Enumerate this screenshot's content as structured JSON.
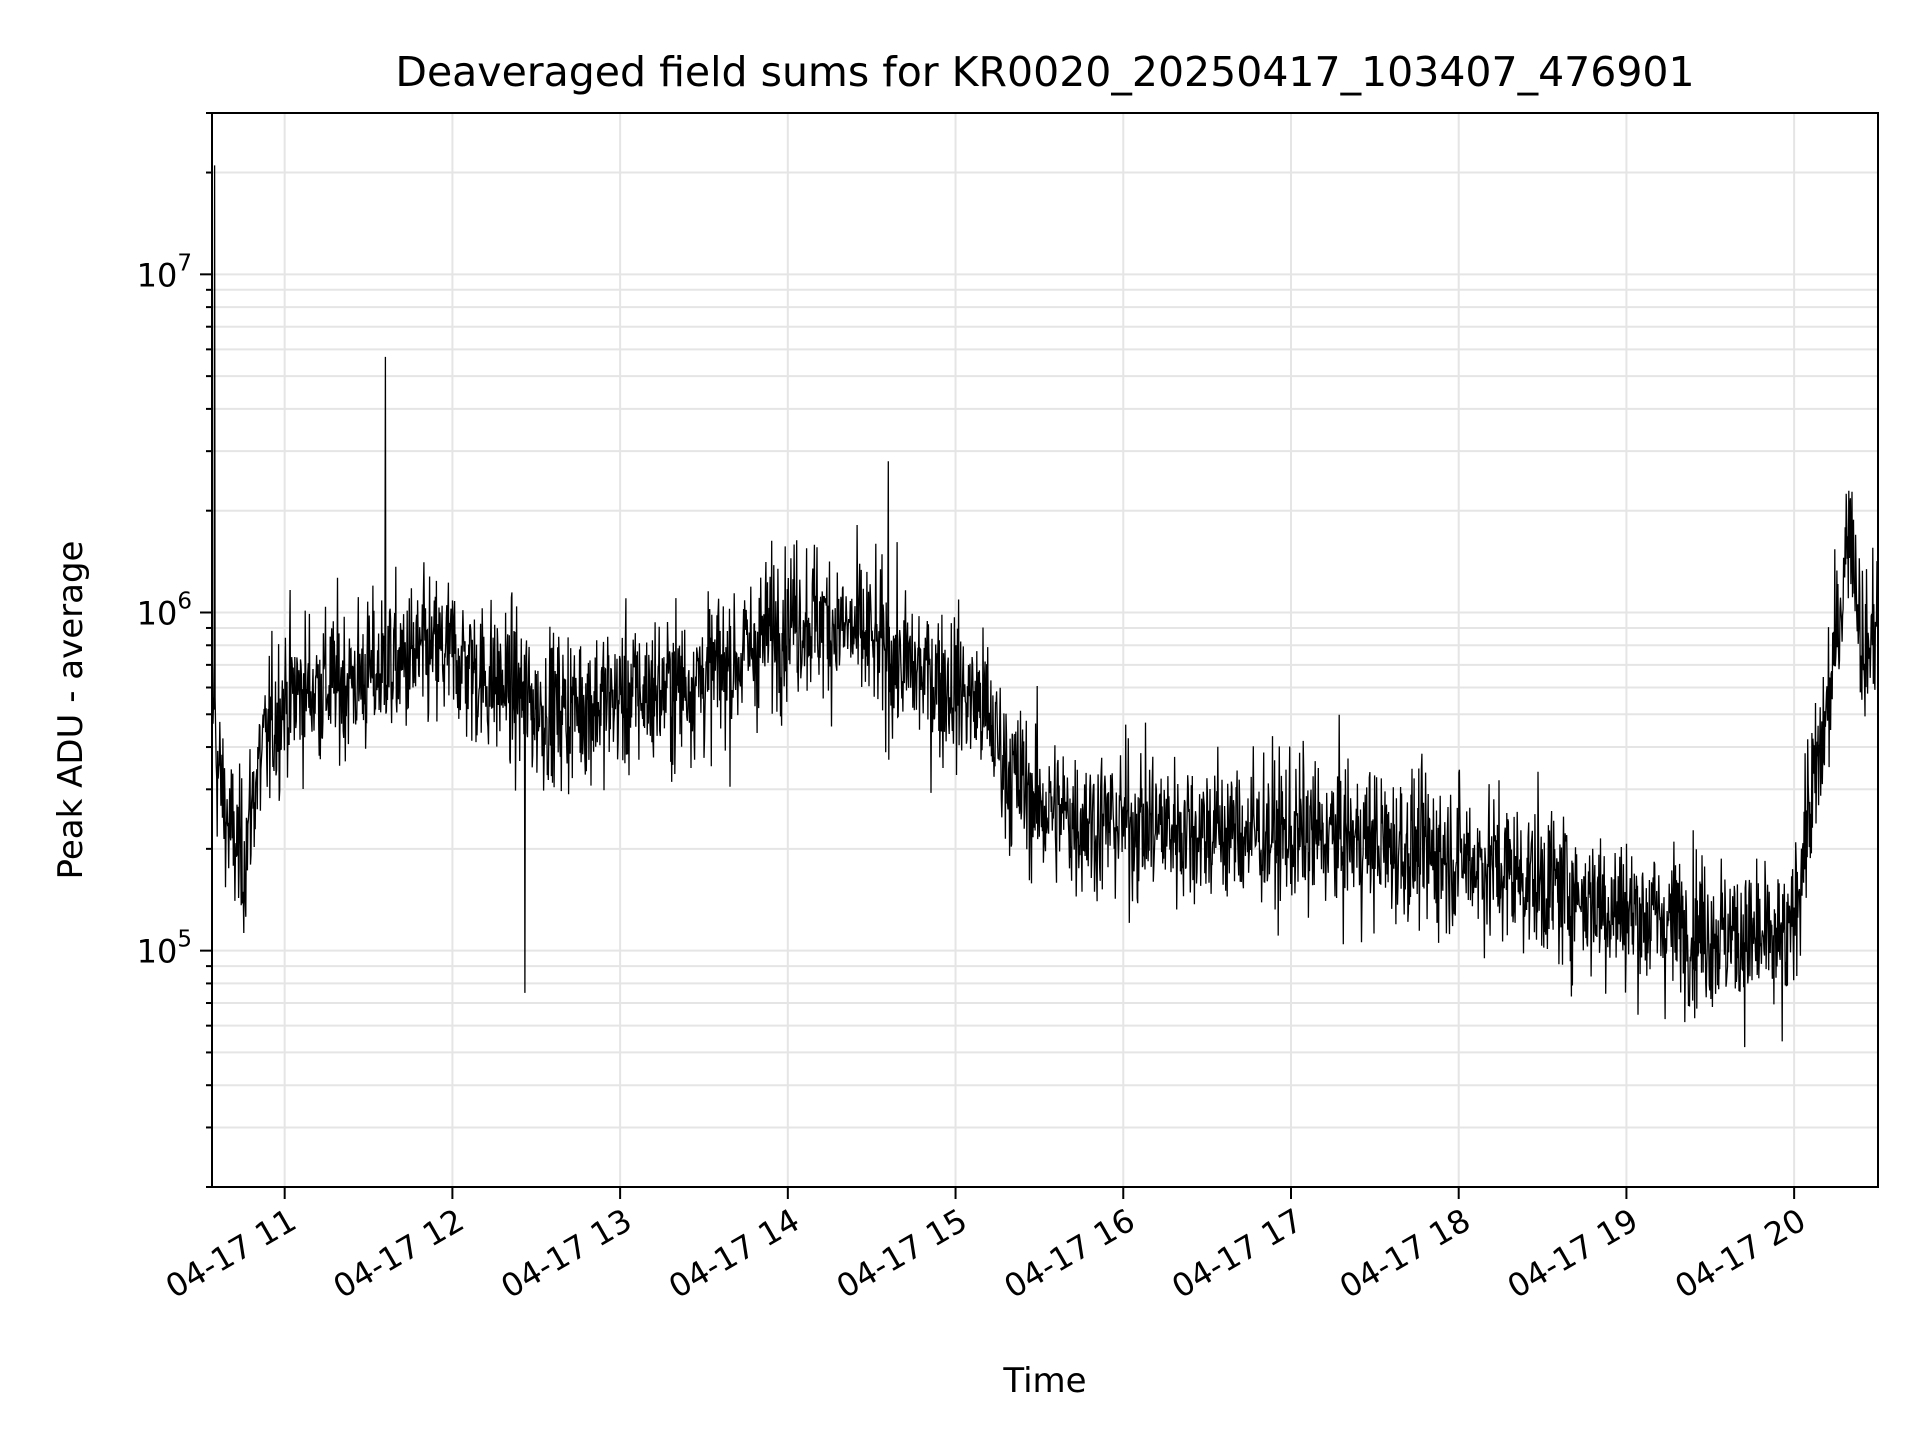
{
  "chart_data": {
    "type": "line",
    "title": "Deaveraged field sums for KR0020_20250417_103407_476901",
    "xlabel": "Time",
    "ylabel": "Peak ADU - average",
    "yscale": "log",
    "ylim": [
      20000,
      30000000
    ],
    "xlim": [
      "2025-04-17 10:34",
      "2025-04-17 20:30"
    ],
    "grid": true,
    "line_color": "#000000",
    "grid_color": "#e5e5e5",
    "x_ticks": [
      {
        "value": "2025-04-17 11:00",
        "label": "04-17 11"
      },
      {
        "value": "2025-04-17 12:00",
        "label": "04-17 12"
      },
      {
        "value": "2025-04-17 13:00",
        "label": "04-17 13"
      },
      {
        "value": "2025-04-17 14:00",
        "label": "04-17 14"
      },
      {
        "value": "2025-04-17 15:00",
        "label": "04-17 15"
      },
      {
        "value": "2025-04-17 16:00",
        "label": "04-17 16"
      },
      {
        "value": "2025-04-17 17:00",
        "label": "04-17 17"
      },
      {
        "value": "2025-04-17 18:00",
        "label": "04-17 18"
      },
      {
        "value": "2025-04-17 19:00",
        "label": "04-17 19"
      },
      {
        "value": "2025-04-17 20:00",
        "label": "04-17 20"
      }
    ],
    "y_ticks": [
      {
        "value": 100000,
        "base": "10",
        "exp": "5"
      },
      {
        "value": 1000000,
        "base": "10",
        "exp": "6"
      },
      {
        "value": 10000000,
        "base": "10",
        "exp": "7"
      }
    ],
    "series": [
      {
        "values_by_time": [
          [
            "2025-04-17 10:34",
            550000
          ],
          [
            "2025-04-17 10:35",
            21000000
          ],
          [
            "2025-04-17 10:36",
            350000
          ],
          [
            "2025-04-17 10:40",
            230000
          ],
          [
            "2025-04-17 10:45",
            180000
          ],
          [
            "2025-04-17 10:50",
            330000
          ],
          [
            "2025-04-17 10:55",
            450000
          ],
          [
            "2025-04-17 11:00",
            560000
          ],
          [
            "2025-04-17 11:10",
            600000
          ],
          [
            "2025-04-17 11:20",
            620000
          ],
          [
            "2025-04-17 11:30",
            650000
          ],
          [
            "2025-04-17 11:36",
            5700000
          ],
          [
            "2025-04-17 11:40",
            700000
          ],
          [
            "2025-04-17 11:50",
            750000
          ],
          [
            "2025-04-17 12:00",
            760000
          ],
          [
            "2025-04-17 12:10",
            650000
          ],
          [
            "2025-04-17 12:20",
            600000
          ],
          [
            "2025-04-17 12:26",
            75000
          ],
          [
            "2025-04-17 12:30",
            520000
          ],
          [
            "2025-04-17 12:40",
            520000
          ],
          [
            "2025-04-17 12:50",
            540000
          ],
          [
            "2025-04-17 13:00",
            560000
          ],
          [
            "2025-04-17 13:10",
            580000
          ],
          [
            "2025-04-17 13:20",
            600000
          ],
          [
            "2025-04-17 13:30",
            650000
          ],
          [
            "2025-04-17 13:40",
            700000
          ],
          [
            "2025-04-17 13:50",
            820000
          ],
          [
            "2025-04-17 14:00",
            980000
          ],
          [
            "2025-04-17 14:10",
            960000
          ],
          [
            "2025-04-17 14:20",
            900000
          ],
          [
            "2025-04-17 14:30",
            820000
          ],
          [
            "2025-04-17 14:36",
            2800000
          ],
          [
            "2025-04-17 14:40",
            700000
          ],
          [
            "2025-04-17 14:50",
            650000
          ],
          [
            "2025-04-17 15:00",
            600000
          ],
          [
            "2025-04-17 15:10",
            520000
          ],
          [
            "2025-04-17 15:20",
            330000
          ],
          [
            "2025-04-17 15:30",
            270000
          ],
          [
            "2025-04-17 15:40",
            250000
          ],
          [
            "2025-04-17 15:50",
            240000
          ],
          [
            "2025-04-17 16:00",
            240000
          ],
          [
            "2025-04-17 16:20",
            230000
          ],
          [
            "2025-04-17 16:40",
            225000
          ],
          [
            "2025-04-17 17:00",
            220000
          ],
          [
            "2025-04-17 17:20",
            215000
          ],
          [
            "2025-04-17 17:40",
            200000
          ],
          [
            "2025-04-17 18:00",
            190000
          ],
          [
            "2025-04-17 18:20",
            170000
          ],
          [
            "2025-04-17 18:40",
            150000
          ],
          [
            "2025-04-17 19:00",
            130000
          ],
          [
            "2025-04-17 19:20",
            120000
          ],
          [
            "2025-04-17 19:40",
            110000
          ],
          [
            "2025-04-17 19:58",
            100000
          ],
          [
            "2025-04-17 20:05",
            250000
          ],
          [
            "2025-04-17 20:10",
            400000
          ],
          [
            "2025-04-17 20:15",
            800000
          ],
          [
            "2025-04-17 20:20",
            2000000
          ],
          [
            "2025-04-17 20:25",
            700000
          ],
          [
            "2025-04-17 20:30",
            1000000
          ]
        ]
      }
    ]
  }
}
